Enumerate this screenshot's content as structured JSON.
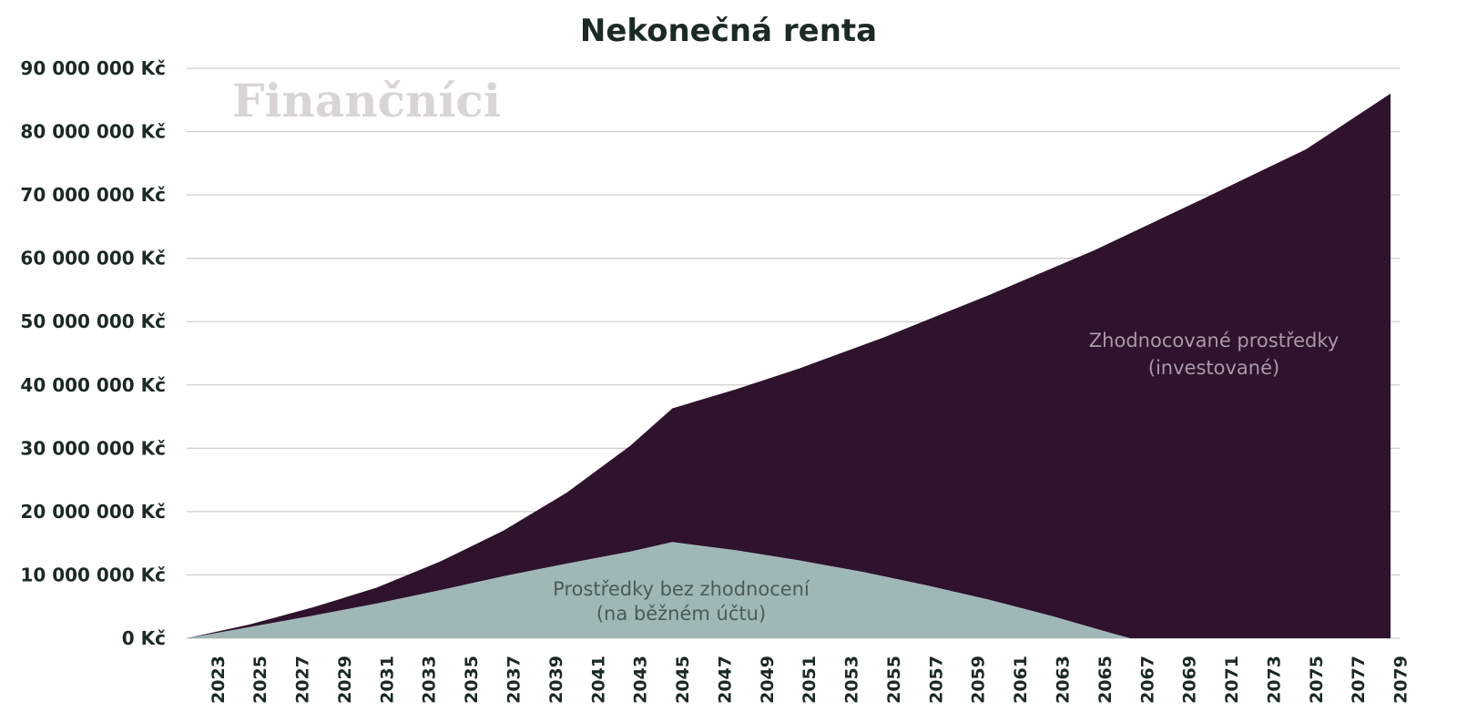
{
  "colors": {
    "invested": "#2f122c",
    "cash": "#a0b7b8",
    "grid": "#cfcfcf",
    "text": "#1b2a22"
  },
  "watermark": "Finančníci",
  "chart_data": {
    "type": "area",
    "title": "Nekonečná renta",
    "xlabel": "",
    "ylabel": "",
    "ylim": [
      0,
      90000000
    ],
    "y_ticks": [
      0,
      10000000,
      20000000,
      30000000,
      40000000,
      50000000,
      60000000,
      70000000,
      80000000,
      90000000
    ],
    "y_tick_labels": [
      "0 Kč",
      "10 000 000 Kč",
      "20 000 000 Kč",
      "30 000 000 Kč",
      "40 000 000 Kč",
      "50 000 000 Kč",
      "60 000 000 Kč",
      "70 000 000 Kč",
      "80 000 000 Kč",
      "90 000 000 Kč"
    ],
    "x_tick_labels": [
      "2023",
      "2025",
      "2027",
      "2029",
      "2031",
      "2033",
      "2035",
      "2037",
      "2039",
      "2041",
      "2043",
      "2045",
      "2047",
      "2049",
      "2051",
      "2053",
      "2055",
      "2057",
      "2059",
      "2061",
      "2063",
      "2065",
      "2067",
      "2069",
      "2071",
      "2073",
      "2075",
      "2077",
      "2079"
    ],
    "grid": true,
    "stacked": false,
    "series": [
      {
        "key": "invested",
        "label_lines": [
          "Zhodnocované prostředky",
          "(investované)"
        ],
        "points": [
          [
            2022,
            0
          ],
          [
            2025,
            2200000
          ],
          [
            2028,
            4900000
          ],
          [
            2031,
            8000000
          ],
          [
            2034,
            12100000
          ],
          [
            2037,
            17000000
          ],
          [
            2040,
            23000000
          ],
          [
            2043,
            30400000
          ],
          [
            2045,
            36300000
          ],
          [
            2048,
            39300000
          ],
          [
            2051,
            42600000
          ],
          [
            2055,
            47500000
          ],
          [
            2060,
            54200000
          ],
          [
            2065,
            61300000
          ],
          [
            2070,
            69200000
          ],
          [
            2075,
            77200000
          ],
          [
            2079,
            86000000
          ]
        ]
      },
      {
        "key": "cash",
        "label_lines": [
          "Prostředky bez zhodnocení",
          "(na běžném účtu)"
        ],
        "points": [
          [
            2022,
            0
          ],
          [
            2025,
            1800000
          ],
          [
            2028,
            3600000
          ],
          [
            2031,
            5500000
          ],
          [
            2034,
            7600000
          ],
          [
            2037,
            9800000
          ],
          [
            2040,
            11800000
          ],
          [
            2043,
            13700000
          ],
          [
            2045,
            15200000
          ],
          [
            2048,
            13900000
          ],
          [
            2051,
            12300000
          ],
          [
            2054,
            10500000
          ],
          [
            2057,
            8400000
          ],
          [
            2060,
            6100000
          ],
          [
            2063,
            3500000
          ],
          [
            2066,
            600000
          ],
          [
            2066.7,
            0
          ],
          [
            2079,
            0
          ]
        ]
      }
    ]
  }
}
